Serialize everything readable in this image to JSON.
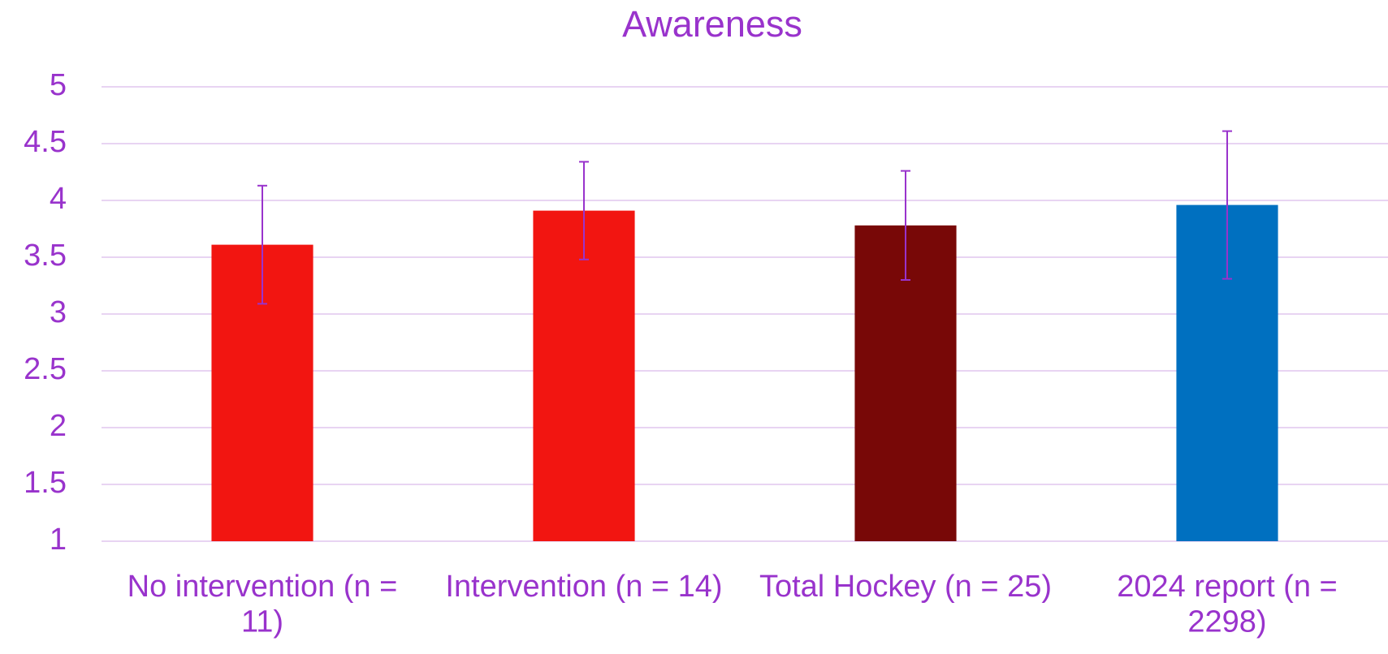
{
  "chart_data": {
    "type": "bar",
    "title": "Awareness",
    "categories": [
      "No intervention (n = 11)",
      "Intervention (n = 14)",
      "Total Hockey (n = 25)",
      "2024 report (n = 2298)"
    ],
    "values": [
      3.61,
      3.91,
      3.78,
      3.96
    ],
    "errors": [
      0.52,
      0.43,
      0.48,
      0.65
    ],
    "colors": [
      "#f21511",
      "#f21511",
      "#780807",
      "#0070c0"
    ],
    "ylim": [
      1,
      5
    ],
    "yticks": [
      1,
      1.5,
      2,
      2.5,
      3,
      3.5,
      4,
      4.5,
      5
    ],
    "grid": true
  }
}
